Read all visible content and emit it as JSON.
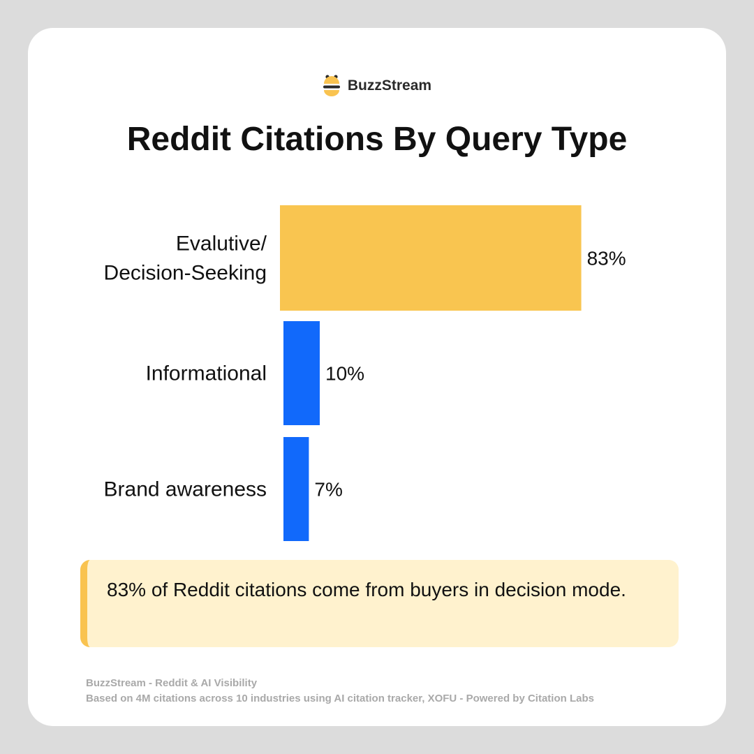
{
  "brand": {
    "name": "BuzzStream",
    "colors": {
      "yellow": "#f9c350",
      "dark": "#2a2a2a"
    }
  },
  "chart_data": {
    "type": "bar",
    "orientation": "horizontal",
    "title": "Reddit Citations By Query Type",
    "categories": [
      [
        "Evalutive/",
        "Decision-Seeking"
      ],
      [
        "Informational"
      ],
      [
        "Brand awareness"
      ]
    ],
    "values": [
      83,
      10,
      7
    ],
    "value_labels": [
      "83%",
      "10%",
      "7%"
    ],
    "unit": "%",
    "xlim": [
      0,
      100
    ],
    "grid": false,
    "legend": "none",
    "bar_colors": [
      "#f9c550",
      "#1169fb",
      "#1169fb"
    ]
  },
  "callout": {
    "text": "83% of Reddit citations come from buyers in decision mode.",
    "background": "#fff2ce",
    "accent": "#f9c350"
  },
  "footer": {
    "line1": "BuzzStream - Reddit & AI Visibility",
    "line2": "Based on 4M citations across 10 industries using AI citation tracker, XOFU - Powered by Citation Labs"
  }
}
